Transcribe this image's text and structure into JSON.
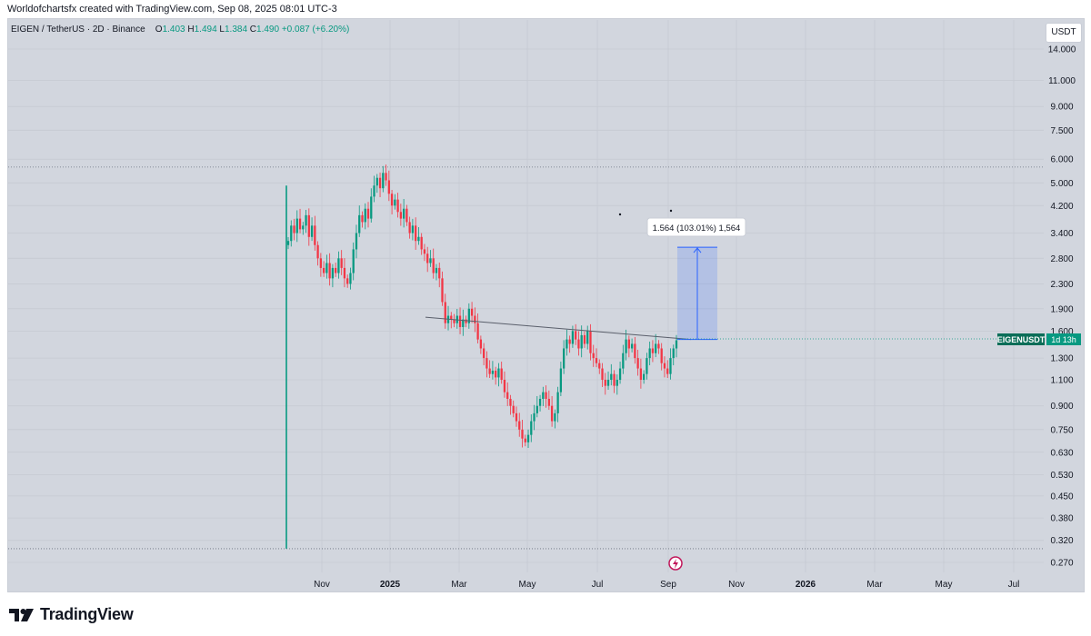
{
  "header": {
    "credit": "Worldofchartsfx created with TradingView.com, Sep 08, 2025 08:01 UTC-3"
  },
  "legend": {
    "symbol": "EIGEN / TetherUS · 2D · Binance",
    "o_label": "O",
    "o": "1.403",
    "h_label": "H",
    "h": "1.494",
    "l_label": "L",
    "l": "1.384",
    "c_label": "C",
    "c": "1.490",
    "change": "+0.087 (+6.20%)"
  },
  "currency_button": "USDT",
  "price_label": {
    "symbol": "EIGENUSDT",
    "countdown": "1d 13h"
  },
  "measure_label": "1.564 (103.01%) 1,564",
  "brand": "TradingView",
  "colors": {
    "up": "#089981",
    "down": "#f23645",
    "background": "#d2d6de",
    "measure": "#2962ff"
  },
  "chart_data": {
    "type": "candlestick",
    "y_scale": "log",
    "y_ticks": [
      "14.000",
      "11.000",
      "9.000",
      "7.500",
      "6.000",
      "5.000",
      "4.200",
      "3.400",
      "2.800",
      "2.300",
      "1.900",
      "1.600",
      "1.300",
      "1.100",
      "0.900",
      "0.750",
      "0.630",
      "0.530",
      "0.450",
      "0.380",
      "0.320",
      "0.270"
    ],
    "x_ticks": [
      "Nov",
      "2025",
      "Mar",
      "May",
      "Jul",
      "Sep",
      "Nov",
      "2026",
      "Mar",
      "May",
      "Jul"
    ],
    "last_price": 1.49,
    "high_line": 5.65,
    "low_line": 0.3,
    "trendline": {
      "from": [
        "2025-02-10",
        1.78
      ],
      "to": [
        "2025-09-30",
        1.5
      ]
    },
    "measure": {
      "from": 1.5,
      "to": 3.05,
      "change": 1.564,
      "percent": 103.01
    },
    "candles_close": [
      3.2,
      3.6,
      3.4,
      3.8,
      3.5,
      3.6,
      3.9,
      3.3,
      3.6,
      3.1,
      2.8,
      2.6,
      2.5,
      2.7,
      2.4,
      2.6,
      2.5,
      2.8,
      2.6,
      2.4,
      2.3,
      2.5,
      3.0,
      3.4,
      3.9,
      3.7,
      4.1,
      3.8,
      4.5,
      4.9,
      5.2,
      4.8,
      5.4,
      5.1,
      4.6,
      4.2,
      4.4,
      4.0,
      3.8,
      4.1,
      3.7,
      3.4,
      3.6,
      3.2,
      3.3,
      3.0,
      2.9,
      2.7,
      2.8,
      2.5,
      2.6,
      2.4,
      2.0,
      1.7,
      1.8,
      1.75,
      1.7,
      1.8,
      1.65,
      1.75,
      1.7,
      1.9,
      1.8,
      1.7,
      1.5,
      1.4,
      1.3,
      1.2,
      1.15,
      1.18,
      1.12,
      1.2,
      1.1,
      1.0,
      0.95,
      0.9,
      0.85,
      0.8,
      0.75,
      0.7,
      0.68,
      0.72,
      0.8,
      0.85,
      0.9,
      0.95,
      1.0,
      0.95,
      0.9,
      0.8,
      0.85,
      1.0,
      1.2,
      1.4,
      1.5,
      1.45,
      1.6,
      1.5,
      1.4,
      1.55,
      1.45,
      1.6,
      1.35,
      1.3,
      1.25,
      1.2,
      1.1,
      1.05,
      1.1,
      1.15,
      1.05,
      1.1,
      1.2,
      1.35,
      1.5,
      1.4,
      1.45,
      1.3,
      1.2,
      1.1,
      1.15,
      1.3,
      1.4,
      1.35,
      1.45,
      1.4,
      1.25,
      1.2,
      1.15,
      1.3,
      1.4,
      1.49
    ]
  }
}
